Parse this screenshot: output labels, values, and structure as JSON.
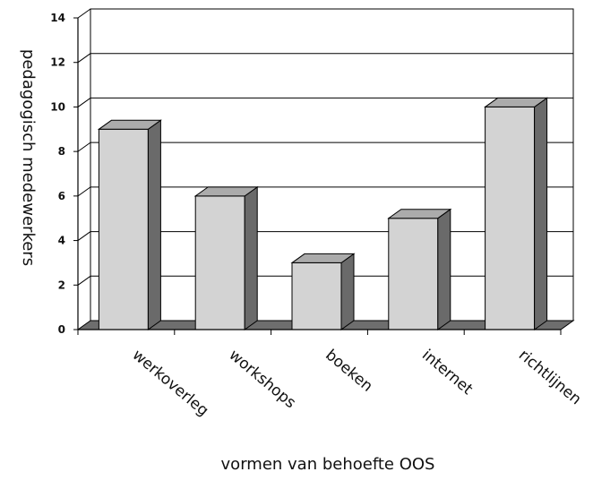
{
  "chart_data": {
    "type": "bar",
    "style": "3d",
    "categories": [
      "werkoverleg",
      "workshops",
      "boeken",
      "internet",
      "richtlijnen"
    ],
    "values": [
      9,
      6,
      3,
      5,
      10
    ],
    "xlabel": "vormen van behoefte OOS",
    "ylabel": "pedagogisch medewerkers",
    "ylim": [
      0,
      14
    ],
    "yticks": [
      "0",
      "2",
      "4",
      "6",
      "8",
      "10",
      "12",
      "14"
    ],
    "grid": true,
    "legend": "none",
    "colors": {
      "bar_front": "#d3d3d3",
      "bar_top": "#ababab",
      "bar_side": "#6a6a6a",
      "floor": "#6e6e6e",
      "line": "#000000"
    }
  }
}
